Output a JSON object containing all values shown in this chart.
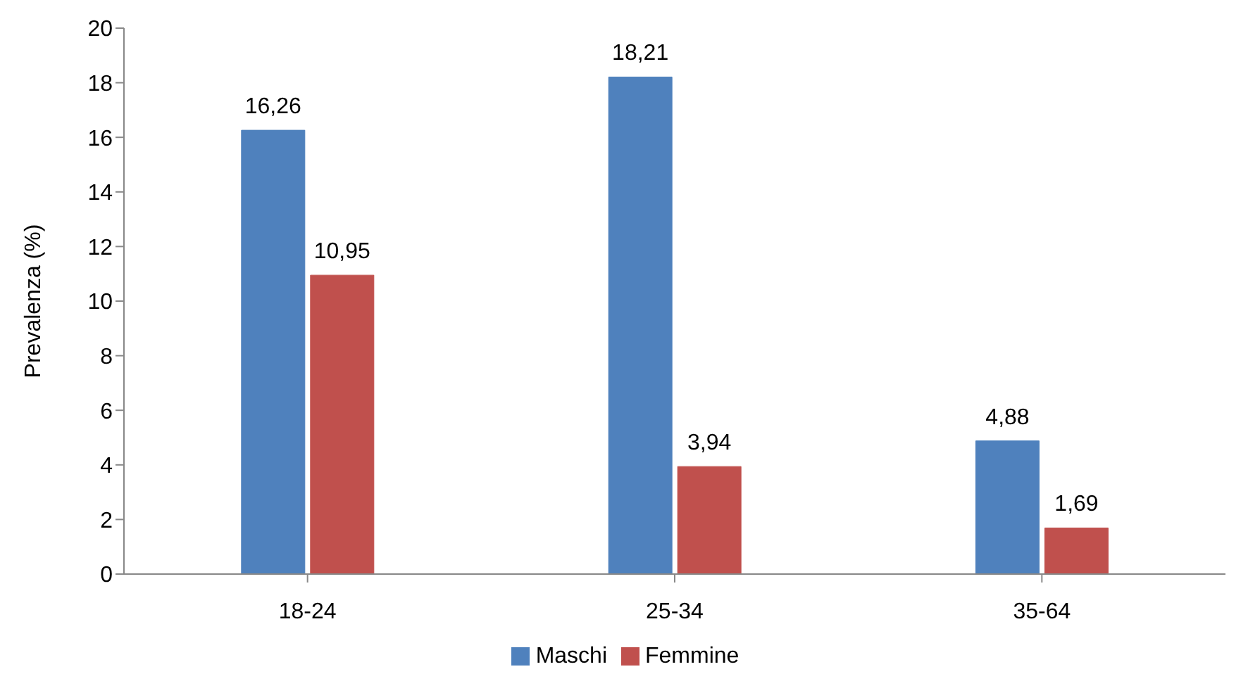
{
  "chart_data": {
    "type": "bar",
    "ylabel": "Prevalenza (%)",
    "categories": [
      "18-24",
      "25-34",
      "35-64"
    ],
    "series": [
      {
        "name": "Maschi",
        "color": "#4f81bd",
        "values": [
          16.26,
          18.21,
          4.88
        ],
        "value_labels": [
          "16,26",
          "18,21",
          "4,88"
        ]
      },
      {
        "name": "Femmine",
        "color": "#c0504d",
        "values": [
          10.95,
          3.94,
          1.69
        ],
        "value_labels": [
          "10,95",
          "3,94",
          "1,69"
        ]
      }
    ],
    "ylim": [
      0,
      20
    ],
    "yticks": [
      0,
      2,
      4,
      6,
      8,
      10,
      12,
      14,
      16,
      18,
      20
    ],
    "grid": false,
    "legend": "bottom"
  }
}
